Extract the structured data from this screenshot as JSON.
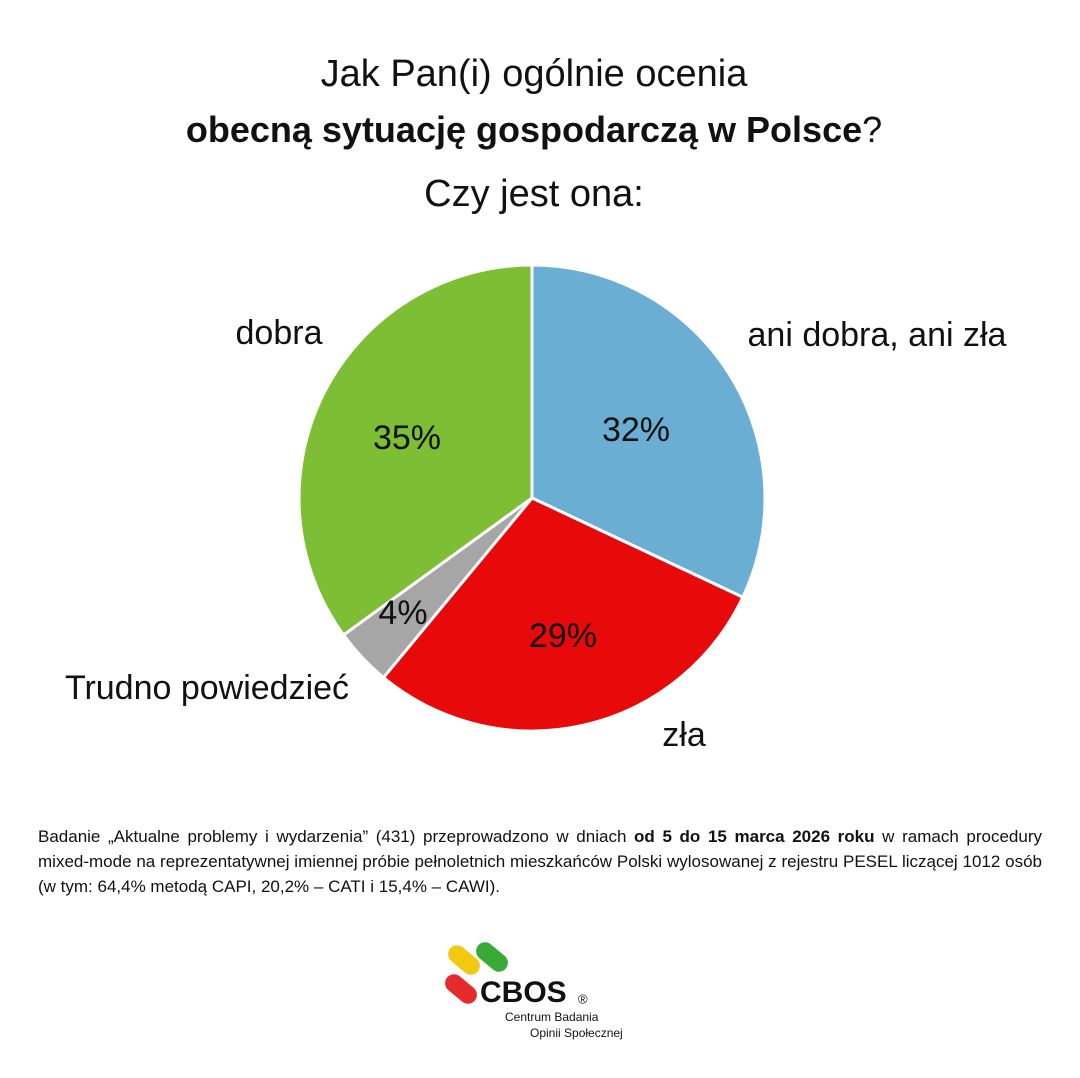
{
  "chart_data": {
    "type": "pie",
    "title": [
      "Jak Pan(i) ogólnie ocenia",
      "obecną sytuację gospodarczą w Polsce",
      "?"
    ],
    "subtitle": "Czy jest ona:",
    "categories": [
      "ani dobra, ani zła",
      "zła",
      "Trudno powiedzieć",
      "dobra"
    ],
    "values": [
      32,
      29,
      4,
      35
    ],
    "value_labels": [
      "32%",
      "29%",
      "4%",
      "35%"
    ],
    "colors": [
      "#6aafd3",
      "#e8090a",
      "#a6a6a6",
      "#7dbe35"
    ]
  },
  "note": [
    "Badanie „Aktualne problemy i wydarzenia” (431) przeprowadzono w dniach ",
    "od 5 do 15 marca 2026 roku",
    " w ramach procedury mixed-mode na reprezentatywnej imiennej próbie pełnoletnich mieszkańców Polski wylosowanej z rejestru PESEL liczącej 1012 osób (w tym: 64,4% metodą CAPI, 20,2% – CATI i 15,4% – CAWI)."
  ],
  "logo": {
    "name": "CBOS",
    "mark": "®",
    "line1": "Centrum Badania",
    "line2": "Opinii Społecznej"
  }
}
